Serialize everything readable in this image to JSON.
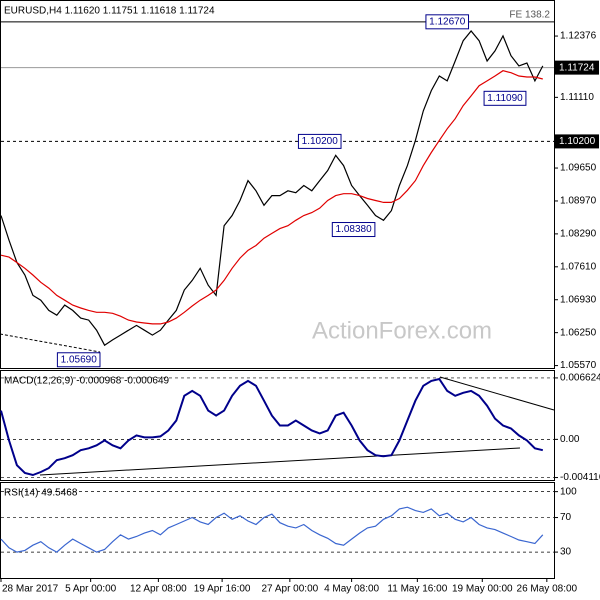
{
  "chart_data": [
    {
      "type": "line",
      "title": "EURUSD,H4  1.11620 1.11751 1.11618 1.11724",
      "x": [
        0,
        1,
        2,
        3,
        4,
        5,
        6,
        7,
        8,
        9,
        10,
        11,
        12,
        13,
        14,
        15,
        16,
        17,
        18,
        19,
        20,
        21,
        22,
        23,
        24,
        25,
        26,
        27,
        28,
        29,
        30,
        31,
        32,
        33,
        34,
        35,
        36,
        37,
        38,
        39,
        40,
        41,
        42,
        43,
        44,
        45,
        46,
        47,
        48,
        49,
        50,
        51,
        52,
        53,
        54,
        55,
        56,
        57,
        58,
        59,
        60,
        61,
        62,
        63,
        64,
        65,
        66,
        67,
        68
      ],
      "xlim": [
        0,
        69.4
      ],
      "ylim": [
        1.0552,
        1.131
      ],
      "yticks": [
        1.12376,
        {
          "value": 1.1111,
          "label": "1.11110"
        },
        {
          "value": 1.0965,
          "label": "1.09650"
        },
        {
          "value": 1.0897,
          "label": "1.08970"
        },
        {
          "value": 1.0829,
          "label": "1.08290"
        },
        {
          "value": 1.0761,
          "label": "1.07610"
        },
        {
          "value": 1.0693,
          "label": "1.06930"
        },
        {
          "value": 1.0625,
          "label": "1.06250"
        },
        {
          "value": 1.0557,
          "label": "1.05570"
        }
      ],
      "series": [
        {
          "color": "#000000",
          "values": [
            1.0867,
            1.0816,
            1.077,
            1.0744,
            1.0702,
            1.0692,
            1.0671,
            1.0661,
            1.0682,
            1.0671,
            1.0655,
            1.0651,
            1.063,
            1.0599,
            1.061,
            1.062,
            1.063,
            1.064,
            1.063,
            1.062,
            1.063,
            1.0651,
            1.0671,
            1.0713,
            1.0733,
            1.0758,
            1.0723,
            1.0702,
            1.0846,
            1.0867,
            1.0898,
            1.0939,
            1.0918,
            1.0888,
            1.0908,
            1.0908,
            1.0918,
            1.0914,
            1.0929,
            1.0918,
            1.0939,
            1.096,
            1.0991,
            1.097,
            1.0929,
            1.0908,
            1.0888,
            1.0867,
            1.0857,
            1.0877,
            1.0929,
            1.097,
            1.1022,
            1.1083,
            1.1125,
            1.1155,
            1.1145,
            1.1186,
            1.1228,
            1.1248,
            1.1228,
            1.1186,
            1.1207,
            1.1238,
            1.1197,
            1.1176,
            1.1182,
            1.1145,
            1.1176
          ]
        },
        {
          "color": "#e00000",
          "values": [
            1.0785,
            1.0781,
            1.077,
            1.0758,
            1.0744,
            1.0729,
            1.0717,
            1.0702,
            1.0692,
            1.0682,
            1.0676,
            1.0671,
            1.0667,
            1.0667,
            1.0665,
            1.0659,
            1.0651,
            1.0647,
            1.0645,
            1.0643,
            1.0643,
            1.0647,
            1.0655,
            1.0667,
            1.068,
            1.0692,
            1.0702,
            1.0713,
            1.0733,
            1.0758,
            1.0779,
            1.0795,
            1.0805,
            1.082,
            1.083,
            1.084,
            1.0846,
            1.0857,
            1.0867,
            1.0873,
            1.0882,
            1.0898,
            1.0908,
            1.0912,
            1.0912,
            1.0908,
            1.0902,
            1.0898,
            1.0894,
            1.0894,
            1.0902,
            1.0919,
            1.0939,
            1.097,
            1.0997,
            1.1022,
            1.1046,
            1.1067,
            1.1094,
            1.1114,
            1.1135,
            1.1145,
            1.1155,
            1.1166,
            1.1162,
            1.1155,
            1.1153,
            1.1153,
            1.1149
          ]
        }
      ],
      "current_price": 1.11724,
      "levels": [
        {
          "value": 1.1267,
          "label": "FE 138.2",
          "style": "solid"
        },
        {
          "value": 1.102,
          "label": "1.10200",
          "style": "dashed"
        }
      ],
      "annotations": [
        {
          "label": "1.12670",
          "x": 56,
          "value": 1.1267
        },
        {
          "label": "1.11090",
          "x": 63.25,
          "value": 1.1109
        },
        {
          "label": "1.10200",
          "x": 40,
          "value": 1.102
        },
        {
          "label": "1.08380",
          "x": 44.25,
          "value": 1.0838
        },
        {
          "label": "1.05690",
          "x": 9.75,
          "value": 1.0569
        }
      ],
      "watermark": "ActionForex.com"
    },
    {
      "type": "line",
      "title": "MACD(12,26,9) -0.000968 -0.000649",
      "x": [
        0,
        1,
        2,
        3,
        4,
        5,
        6,
        7,
        8,
        9,
        10,
        11,
        12,
        13,
        14,
        15,
        16,
        17,
        18,
        19,
        20,
        21,
        22,
        23,
        24,
        25,
        26,
        27,
        28,
        29,
        30,
        31,
        32,
        33,
        34,
        35,
        36,
        37,
        38,
        39,
        40,
        41,
        42,
        43,
        44,
        45,
        46,
        47,
        48,
        49,
        50,
        51,
        52,
        53,
        54,
        55,
        56,
        57,
        58,
        59,
        60,
        61,
        62,
        63,
        64,
        65,
        66,
        67,
        68
      ],
      "xlim": [
        0,
        69.4
      ],
      "ylim": [
        -0.00438,
        0.00737
      ],
      "yticks": [
        0.006624,
        {
          "value": 0,
          "label": "0.00"
        },
        -0.004116
      ],
      "grid": "dashed",
      "series": [
        {
          "color": "#00008b",
          "values": [
            0.0031,
            -0.00011,
            -0.00278,
            -0.00363,
            -0.00384,
            -0.00352,
            -0.0031,
            -0.00224,
            -0.00203,
            -0.00171,
            -0.00117,
            -0.00096,
            -0.00064,
            -0.00011,
            -0.00064,
            -0.00096,
            -0.00011,
            0.00043,
            0.00021,
            0.00021,
            0.00032,
            0.00096,
            0.00203,
            0.0047,
            0.00523,
            0.0047,
            0.0031,
            0.00256,
            0.0031,
            0.0047,
            0.00577,
            0.0063,
            0.00577,
            0.00417,
            0.00256,
            0.0015,
            0.0015,
            0.00203,
            0.0015,
            0.00096,
            0.00064,
            0.00096,
            0.00256,
            0.00288,
            0.0015,
            -0.00011,
            -0.00117,
            -0.00171,
            -0.00182,
            -0.00171,
            -0.00011,
            0.00203,
            0.00417,
            0.00577,
            0.0063,
            0.00651,
            0.00523,
            0.0047,
            0.00502,
            0.00523,
            0.0047,
            0.00363,
            0.00224,
            0.0015,
            0.00117,
            0.00043,
            -0.00011,
            -0.00096,
            -0.00117
          ]
        }
      ]
    },
    {
      "type": "line",
      "title": "RSI(14) 49.5468",
      "x": [
        0,
        1,
        2,
        3,
        4,
        5,
        6,
        7,
        8,
        9,
        10,
        11,
        12,
        13,
        14,
        15,
        16,
        17,
        18,
        19,
        20,
        21,
        22,
        23,
        24,
        25,
        26,
        27,
        28,
        29,
        30,
        31,
        32,
        33,
        34,
        35,
        36,
        37,
        38,
        39,
        40,
        41,
        42,
        43,
        44,
        45,
        46,
        47,
        48,
        49,
        50,
        51,
        52,
        53,
        54,
        55,
        56,
        57,
        58,
        59,
        60,
        61,
        62,
        63,
        64,
        65,
        66,
        67,
        68
      ],
      "xlim": [
        0,
        69.4
      ],
      "ylim": [
        0,
        110
      ],
      "yticks": [
        100,
        70,
        30
      ],
      "grid": "dashed",
      "series": [
        {
          "color": "#3a66d0",
          "values": [
            45,
            35,
            30,
            32,
            38,
            42,
            35,
            30,
            38,
            45,
            40,
            35,
            30,
            33,
            42,
            50,
            45,
            48,
            52,
            55,
            50,
            58,
            62,
            66,
            70,
            65,
            62,
            70,
            75,
            68,
            72,
            66,
            62,
            70,
            74,
            64,
            60,
            58,
            62,
            55,
            50,
            46,
            40,
            38,
            45,
            52,
            58,
            60,
            68,
            72,
            80,
            82,
            78,
            76,
            80,
            72,
            75,
            68,
            65,
            70,
            62,
            58,
            56,
            52,
            48,
            44,
            42,
            40,
            50
          ]
        }
      ],
      "xticks": [
        {
          "value": 0,
          "label": "28 Mar 2017"
        },
        {
          "value": 11.25,
          "label": "5 Apr 00:00"
        },
        {
          "value": 19.75,
          "label": "12 Apr 08:00"
        },
        {
          "value": 27.75,
          "label": "19 Apr 16:00"
        },
        {
          "value": 36.25,
          "label": "27 Apr 00:00"
        },
        {
          "value": 44,
          "label": "4 May 08:00"
        },
        {
          "value": 52.25,
          "label": "11 May 16:00"
        },
        {
          "value": 60.4,
          "label": "19 May 00:00"
        },
        {
          "value": 68.5,
          "label": "26 May 08:00"
        }
      ]
    }
  ]
}
